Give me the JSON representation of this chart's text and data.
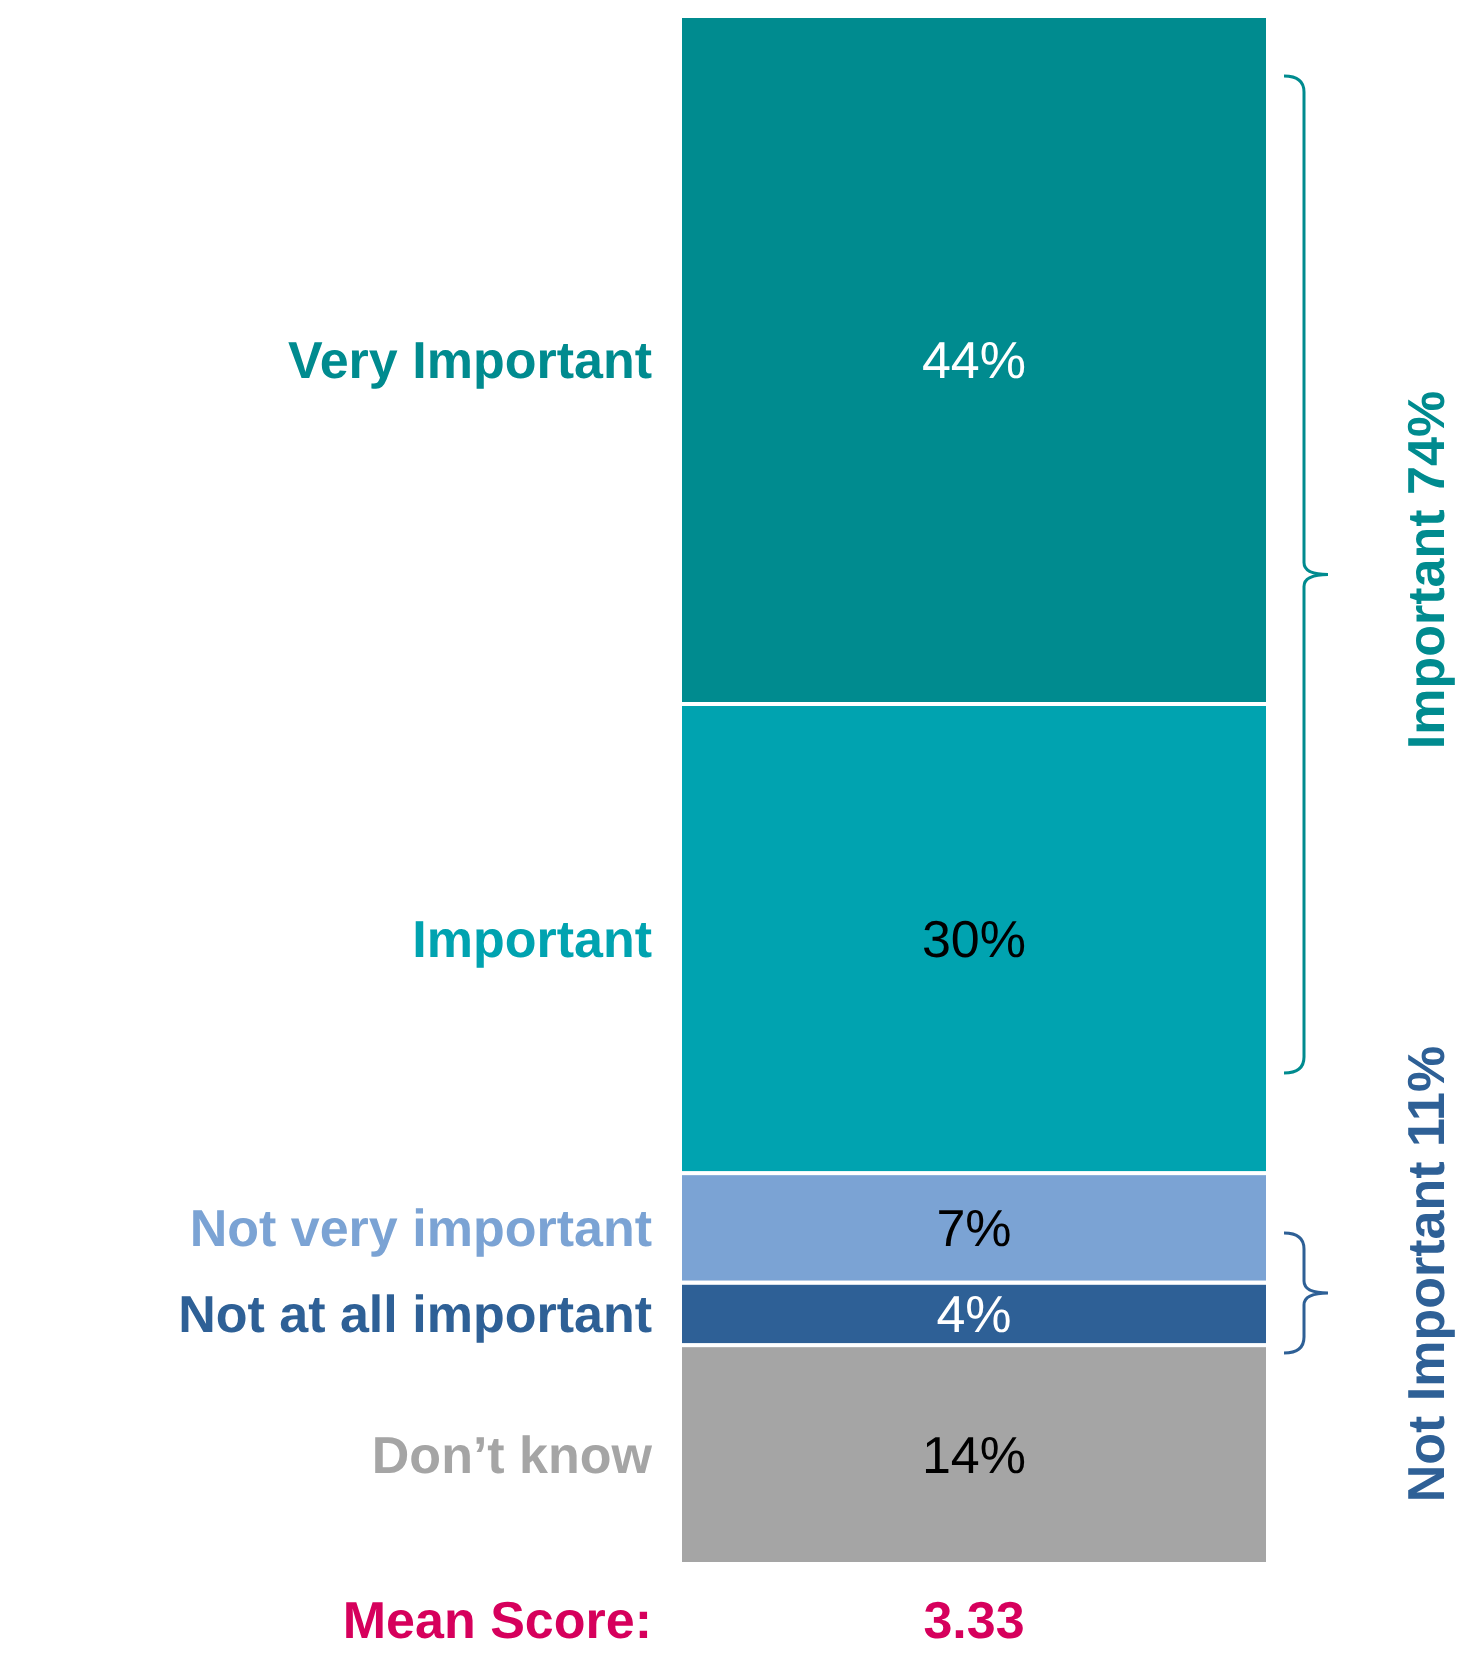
{
  "chart_data": {
    "type": "bar",
    "stacked": true,
    "categories": [
      null
    ],
    "series": [
      {
        "name": "Don’t know",
        "color": "#a5a5a5",
        "values": [
          14
        ],
        "value_labels": [
          "14%"
        ]
      },
      {
        "name": "Not at all important",
        "color": "#2e6096",
        "values": [
          4
        ],
        "value_labels": [
          "4%"
        ]
      },
      {
        "name": "Not very important",
        "color": "#7ba3d4",
        "values": [
          7
        ],
        "value_labels": [
          "7%"
        ]
      },
      {
        "name": "Important",
        "color": "#00a3b0",
        "values": [
          30
        ],
        "value_labels": [
          "30%"
        ]
      },
      {
        "name": "Very Important",
        "color": "#008b8f",
        "values": [
          44
        ],
        "value_labels": [
          "44%"
        ]
      }
    ],
    "annotations": [
      "Important 74%",
      "Not Important 11%",
      "Mean Score:",
      "3.33"
    ]
  }
}
